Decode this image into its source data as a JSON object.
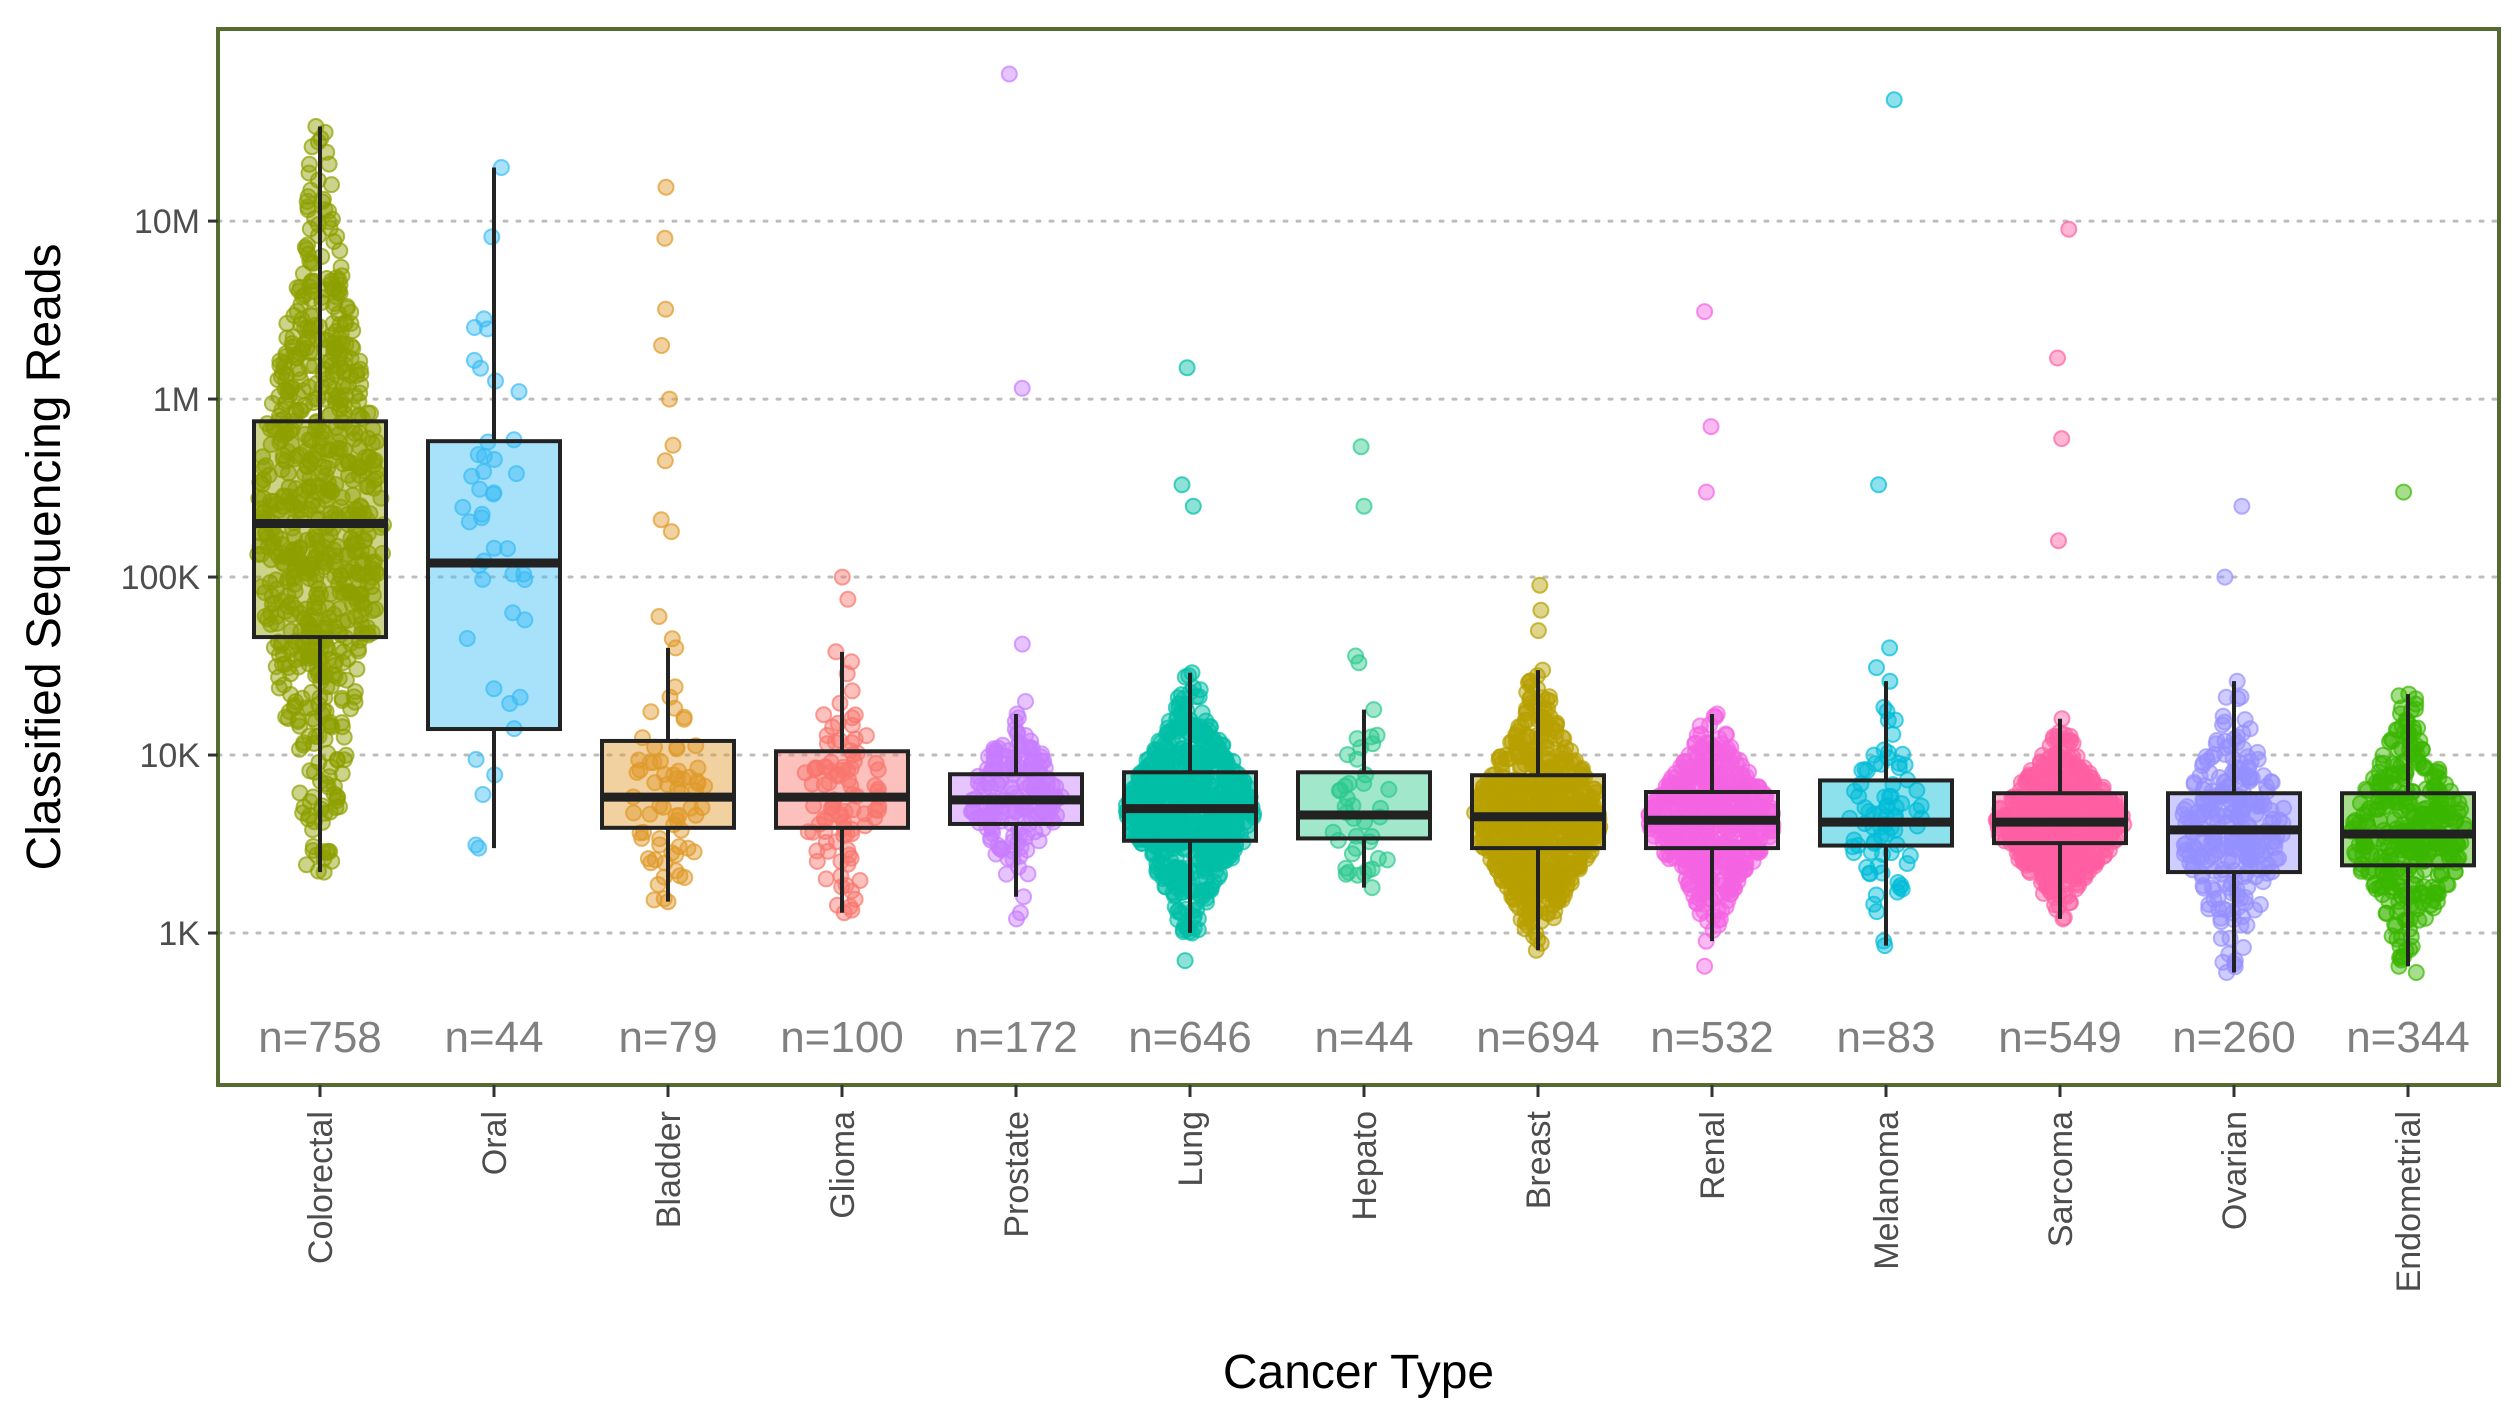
{
  "chart_data": {
    "type": "box",
    "scale": "log10",
    "xlabel": "Cancer Type",
    "ylabel": "Classified Sequencing Reads",
    "y_ticks": [
      {
        "value": 1000,
        "label": "1K"
      },
      {
        "value": 10000,
        "label": "10K"
      },
      {
        "value": 100000,
        "label": "100K"
      },
      {
        "value": 1000000,
        "label": "1M"
      },
      {
        "value": 10000000,
        "label": "10M"
      }
    ],
    "ylim": [
      140,
      120000000
    ],
    "grid": "horizontal dotted at major ticks",
    "legend": "none",
    "frame_color": "#556b2f",
    "categories": [
      {
        "name": "Colorectal",
        "n": 758,
        "count_label": "n=758",
        "color": "#8da000",
        "box": {
          "whisker_low": 2200,
          "q1": 46000,
          "median": 200000,
          "q3": 750000,
          "whisker_high": 34000000
        },
        "outliers": []
      },
      {
        "name": "Oral",
        "n": 44,
        "count_label": "n=44",
        "color": "#3cbcf4",
        "box": {
          "whisker_low": 3000,
          "q1": 14000,
          "median": 120000,
          "q3": 580000,
          "whisker_high": 20000000
        },
        "outliers": []
      },
      {
        "name": "Bladder",
        "n": 79,
        "count_label": "n=79",
        "color": "#e09a2a",
        "box": {
          "whisker_low": 1500,
          "q1": 3900,
          "median": 5800,
          "q3": 12000,
          "whisker_high": 40000
        },
        "outliers": [
          45000,
          60000,
          180000,
          210000,
          450000,
          550000,
          1000000,
          2000000,
          3200000,
          8000000,
          15500000
        ]
      },
      {
        "name": "Glioma",
        "n": 100,
        "count_label": "n=100",
        "color": "#f8766d",
        "box": {
          "whisker_low": 1300,
          "q1": 3900,
          "median": 5800,
          "q3": 10500,
          "whisker_high": 38000
        },
        "outliers": [
          75000,
          100000
        ]
      },
      {
        "name": "Prostate",
        "n": 172,
        "count_label": "n=172",
        "color": "#c77cff",
        "box": {
          "whisker_low": 1600,
          "q1": 4100,
          "median": 5600,
          "q3": 7800,
          "whisker_high": 17000
        },
        "outliers": [
          1200,
          1300,
          20000,
          42000,
          1150000,
          67000000
        ]
      },
      {
        "name": "Lung",
        "n": 646,
        "count_label": "n=646",
        "color": "#00bfa6",
        "box": {
          "whisker_low": 1000,
          "q1": 3300,
          "median": 5000,
          "q3": 8000,
          "whisker_high": 29000
        },
        "outliers": [
          700,
          250000,
          330000,
          1500000
        ]
      },
      {
        "name": "Hepato",
        "n": 44,
        "count_label": "n=44",
        "color": "#2cc98f",
        "box": {
          "whisker_low": 1800,
          "q1": 3400,
          "median": 4600,
          "q3": 8000,
          "whisker_high": 18000
        },
        "outliers": [
          33000,
          36000,
          250000,
          540000
        ]
      },
      {
        "name": "Breast",
        "n": 694,
        "count_label": "n=694",
        "color": "#b79f00",
        "box": {
          "whisker_low": 800,
          "q1": 3000,
          "median": 4500,
          "q3": 7700,
          "whisker_high": 30000
        },
        "outliers": [
          50000,
          65000,
          90000
        ]
      },
      {
        "name": "Renal",
        "n": 532,
        "count_label": "n=532",
        "color": "#f564e3",
        "box": {
          "whisker_low": 900,
          "q1": 3000,
          "median": 4300,
          "q3": 6200,
          "whisker_high": 17000
        },
        "outliers": [
          650,
          300000,
          700000,
          3100000
        ]
      },
      {
        "name": "Melanoma",
        "n": 83,
        "count_label": "n=83",
        "color": "#00bcd8",
        "box": {
          "whisker_low": 850,
          "q1": 3100,
          "median": 4200,
          "q3": 7200,
          "whisker_high": 26000
        },
        "outliers": [
          31000,
          40000,
          330000,
          48000000
        ]
      },
      {
        "name": "Sarcoma",
        "n": 549,
        "count_label": "n=549",
        "color": "#ff5fa2",
        "box": {
          "whisker_low": 1200,
          "q1": 3200,
          "median": 4200,
          "q3": 6100,
          "whisker_high": 16000
        },
        "outliers": [
          160000,
          600000,
          1700000,
          9000000
        ]
      },
      {
        "name": "Ovarian",
        "n": 260,
        "count_label": "n=260",
        "color": "#9590ff",
        "box": {
          "whisker_low": 600,
          "q1": 2200,
          "median": 3800,
          "q3": 6100,
          "whisker_high": 26000
        },
        "outliers": [
          100000,
          250000
        ]
      },
      {
        "name": "Endometrial",
        "n": 344,
        "count_label": "n=344",
        "color": "#39b600",
        "box": {
          "whisker_low": 650,
          "q1": 2400,
          "median": 3600,
          "q3": 6100,
          "whisker_high": 22000
        },
        "outliers": [
          600,
          300000
        ]
      }
    ]
  }
}
